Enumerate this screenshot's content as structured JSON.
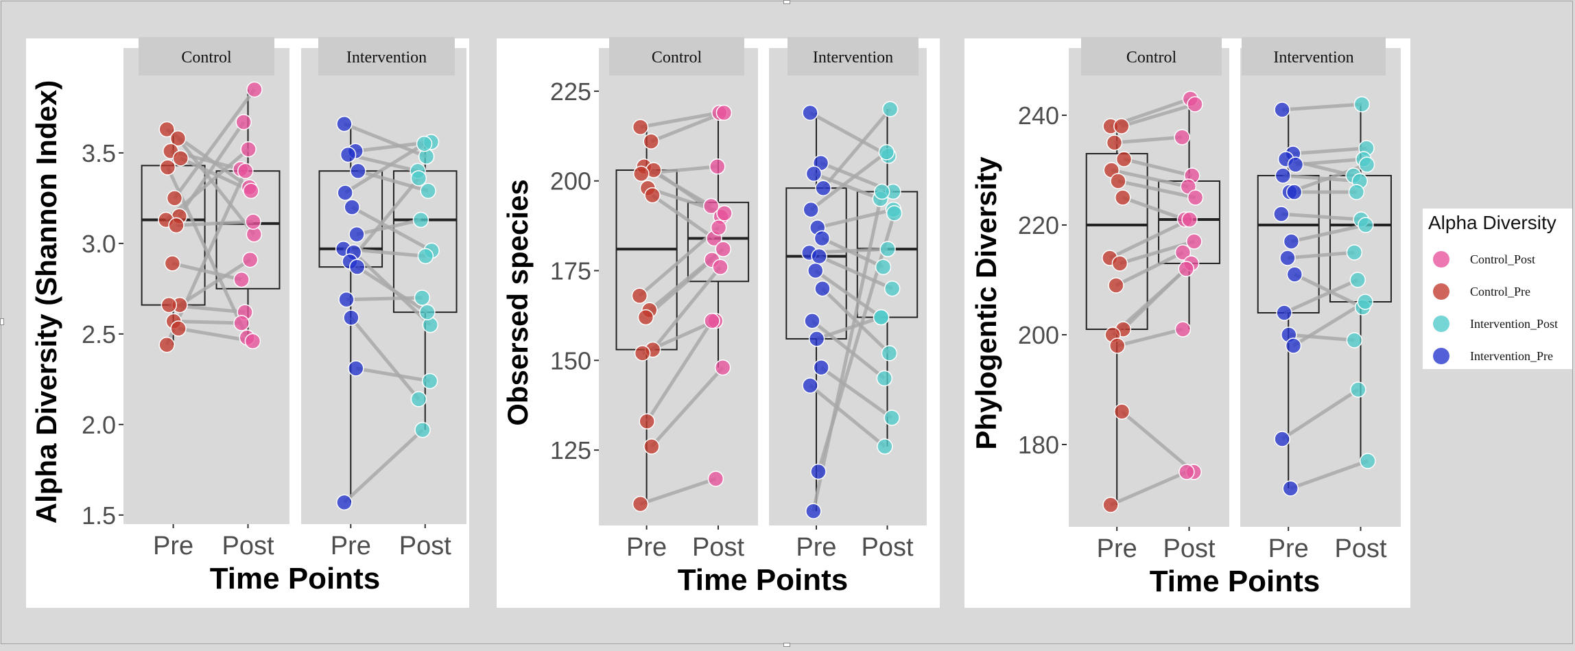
{
  "legend": {
    "title": "Alpha Diversity",
    "entries": [
      {
        "label": "Control_Post",
        "color": "#e8529b"
      },
      {
        "label": "Control_Pre",
        "color": "#c0392b"
      },
      {
        "label": "Intervention_Post",
        "color": "#4fcbcb"
      },
      {
        "label": "Intervention_Pre",
        "color": "#2233cc"
      }
    ]
  },
  "chart_data": [
    {
      "type": "box",
      "ylabel": "Alpha Diversity (Shannon Index)",
      "xlabel": "Time Points",
      "yticks": [
        1.5,
        2.0,
        2.5,
        3.0,
        3.5
      ],
      "ytick_labels": [
        "1.5",
        "2.0",
        "2.5",
        "3.0",
        "3.5"
      ],
      "ylim": [
        1.45,
        3.92
      ],
      "grid": false,
      "facets": [
        {
          "label": "Control",
          "categories": [
            "Pre",
            "Post"
          ],
          "boxes": [
            {
              "category": "Pre",
              "min": 2.44,
              "q1": 2.66,
              "median": 3.13,
              "q3": 3.43,
              "max": 3.63
            },
            {
              "category": "Post",
              "min": 2.46,
              "q1": 2.75,
              "median": 3.11,
              "q3": 3.4,
              "max": 3.85
            }
          ],
          "pre_series": "Control_Pre",
          "post_series": "Control_Post",
          "pairs": [
            [
              3.63,
              3.31
            ],
            [
              3.58,
              3.05
            ],
            [
              3.51,
              3.41
            ],
            [
              3.47,
              3.29
            ],
            [
              3.42,
              2.48
            ],
            [
              3.25,
              3.85
            ],
            [
              3.15,
              3.67
            ],
            [
              3.13,
              3.52
            ],
            [
              3.1,
              3.12
            ],
            [
              2.89,
              2.8
            ],
            [
              2.66,
              2.91
            ],
            [
              2.66,
              2.62
            ],
            [
              2.57,
              2.56
            ],
            [
              2.53,
              2.46
            ],
            [
              2.44,
              3.4
            ]
          ]
        },
        {
          "label": "Intervention",
          "categories": [
            "Pre",
            "Post"
          ],
          "boxes": [
            {
              "category": "Pre",
              "min": 1.57,
              "q1": 2.87,
              "median": 2.97,
              "q3": 3.4,
              "max": 3.66
            },
            {
              "category": "Post",
              "min": 1.97,
              "q1": 2.62,
              "median": 3.13,
              "q3": 3.4,
              "max": 3.56
            }
          ],
          "pre_series": "Intervention_Pre",
          "post_series": "Intervention_Post",
          "pairs": [
            [
              3.66,
              3.48
            ],
            [
              3.51,
              3.56
            ],
            [
              3.49,
              3.4
            ],
            [
              3.4,
              3.29
            ],
            [
              3.28,
              3.55
            ],
            [
              3.2,
              2.96
            ],
            [
              3.05,
              3.13
            ],
            [
              2.97,
              2.93
            ],
            [
              2.95,
              2.55
            ],
            [
              2.9,
              3.36
            ],
            [
              2.87,
              2.62
            ],
            [
              2.69,
              2.7
            ],
            [
              2.59,
              2.14
            ],
            [
              2.31,
              2.24
            ],
            [
              1.57,
              1.97
            ]
          ]
        }
      ]
    },
    {
      "type": "box",
      "ylabel": "Obsersed species",
      "xlabel": "Time Points",
      "yticks": [
        125,
        150,
        175,
        200,
        225
      ],
      "ytick_labels": [
        "125",
        "150",
        "175",
        "200",
        "225"
      ],
      "ylim": [
        104,
        229
      ],
      "grid": false,
      "facets": [
        {
          "label": "Control",
          "categories": [
            "Pre",
            "Post"
          ],
          "boxes": [
            {
              "category": "Pre",
              "min": 110,
              "q1": 153,
              "median": 181,
              "q3": 203,
              "max": 215
            },
            {
              "category": "Post",
              "min": 148,
              "q1": 172,
              "median": 184,
              "q3": 194,
              "max": 219
            }
          ],
          "pre_series": "Control_Pre",
          "post_series": "Control_Post",
          "pairs": [
            [
              215,
              219
            ],
            [
              211,
              219
            ],
            [
              204,
              193
            ],
            [
              203,
              190
            ],
            [
              202,
              204
            ],
            [
              198,
              191
            ],
            [
              196,
              184
            ],
            [
              168,
              187
            ],
            [
              164,
              181
            ],
            [
              162,
              178
            ],
            [
              153,
              176
            ],
            [
              152,
              161
            ],
            [
              133,
              161
            ],
            [
              126,
              148
            ],
            [
              110,
              117
            ]
          ]
        },
        {
          "label": "Intervention",
          "categories": [
            "Pre",
            "Post"
          ],
          "boxes": [
            {
              "category": "Pre",
              "min": 108,
              "q1": 156,
              "median": 179,
              "q3": 198,
              "max": 219
            },
            {
              "category": "Post",
              "min": 126,
              "q1": 162,
              "median": 181,
              "q3": 197,
              "max": 220
            }
          ],
          "pre_series": "Intervention_Pre",
          "post_series": "Intervention_Post",
          "pairs": [
            [
              219,
              207
            ],
            [
              205,
              197
            ],
            [
              202,
              195
            ],
            [
              198,
              220
            ],
            [
              192,
              208
            ],
            [
              187,
              192
            ],
            [
              184,
              176
            ],
            [
              180,
              181
            ],
            [
              179,
              170
            ],
            [
              175,
              162
            ],
            [
              170,
              152
            ],
            [
              161,
              145
            ],
            [
              156,
              162
            ],
            [
              148,
              134
            ],
            [
              143,
              126
            ],
            [
              119,
              191
            ],
            [
              108,
              197
            ]
          ]
        }
      ]
    },
    {
      "type": "box",
      "ylabel": "Phylogentic Diversity",
      "xlabel": "Time Points",
      "yticks": [
        180,
        200,
        220,
        240
      ],
      "ytick_labels": [
        "180",
        "200",
        "220",
        "240"
      ],
      "ylim": [
        165,
        247
      ],
      "grid": false,
      "facets": [
        {
          "label": "Control",
          "categories": [
            "Pre",
            "Post"
          ],
          "boxes": [
            {
              "category": "Pre",
              "min": 169,
              "q1": 201,
              "median": 220,
              "q3": 233,
              "max": 238
            },
            {
              "category": "Post",
              "min": 201,
              "q1": 213,
              "median": 221,
              "q3": 228,
              "max": 243
            }
          ],
          "pre_series": "Control_Pre",
          "post_series": "Control_Post",
          "pairs": [
            [
              238,
              243
            ],
            [
              238,
              242
            ],
            [
              235,
              236
            ],
            [
              232,
              229
            ],
            [
              230,
              227
            ],
            [
              228,
              225
            ],
            [
              225,
              221
            ],
            [
              214,
              221
            ],
            [
              213,
              217
            ],
            [
              209,
              215
            ],
            [
              201,
              213
            ],
            [
              200,
              212
            ],
            [
              198,
              201
            ],
            [
              186,
              175
            ],
            [
              169,
              175
            ]
          ]
        },
        {
          "label": "Intervention",
          "categories": [
            "Pre",
            "Post"
          ],
          "boxes": [
            {
              "category": "Pre",
              "min": 172,
              "q1": 204,
              "median": 220,
              "q3": 229,
              "max": 241
            },
            {
              "category": "Post",
              "min": 177,
              "q1": 206,
              "median": 220,
              "q3": 229,
              "max": 242
            }
          ],
          "pre_series": "Intervention_Pre",
          "post_series": "Intervention_Post",
          "pairs": [
            [
              241,
              242
            ],
            [
              233,
              234
            ],
            [
              232,
              229
            ],
            [
              231,
              232
            ],
            [
              229,
              228
            ],
            [
              226,
              231
            ],
            [
              226,
              226
            ],
            [
              222,
              221
            ],
            [
              217,
              220
            ],
            [
              214,
              215
            ],
            [
              211,
              205
            ],
            [
              204,
              210
            ],
            [
              200,
              199
            ],
            [
              198,
              206
            ],
            [
              181,
              190
            ],
            [
              172,
              177
            ]
          ]
        }
      ]
    }
  ]
}
